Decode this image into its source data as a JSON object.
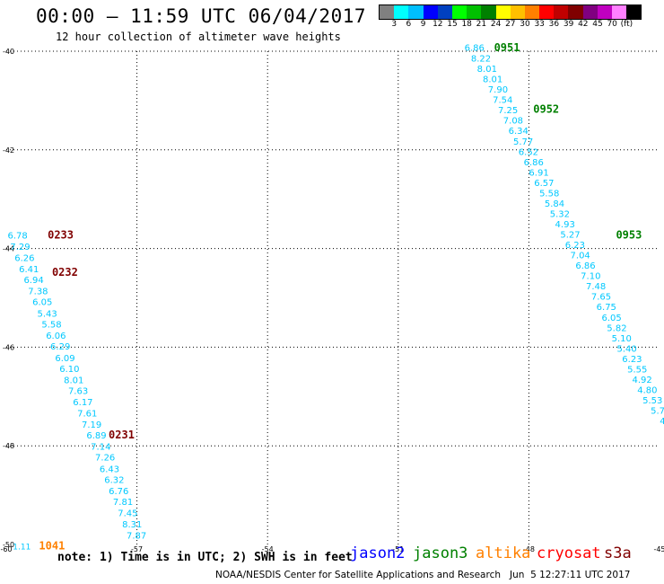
{
  "header": {
    "title": "00:00 – 11:59 UTC 06/04/2017",
    "subtitle": "12 hour collection of altimeter wave heights"
  },
  "color_scale": {
    "colors": [
      "#808080",
      "#00ffff",
      "#00bfff",
      "#0000ff",
      "#0040c0",
      "#00ff00",
      "#00c000",
      "#008000",
      "#ffff00",
      "#ffc000",
      "#ff8000",
      "#ff0000",
      "#c00000",
      "#800000",
      "#800080",
      "#c000c0",
      "#ff80ff",
      "#000000"
    ],
    "labels": [
      "3",
      "6",
      "9",
      "12",
      "15",
      "18",
      "21",
      "24",
      "27",
      "30",
      "33",
      "36",
      "39",
      "42",
      "45",
      "70",
      "(ft)"
    ]
  },
  "map": {
    "lat_labels": [
      "-40",
      "-42",
      "-44",
      "-46",
      "-48",
      "-50"
    ],
    "lon_labels": [
      "-60",
      "-57",
      "-54",
      "-51",
      "-48",
      "-45"
    ],
    "track_color": "#00c8ff",
    "tracks": [
      {
        "name": "track-east",
        "values": [
          "6.86",
          "8.22",
          "8.01",
          "8.01",
          "7.90",
          "7.54",
          "7.25",
          "7.08",
          "6.34",
          "5.77",
          "6.52",
          "6.86",
          "6.91",
          "6.57",
          "5.58",
          "5.84",
          "5.32",
          "4.93",
          "5.27",
          "6.23",
          "7.04",
          "6.86",
          "7.10",
          "7.48",
          "7.65",
          "6.75",
          "6.05",
          "5.82",
          "5.10",
          "5.40",
          "6.23",
          "5.55",
          "4.92",
          "4.80",
          "5.53",
          "5.7",
          "4"
        ],
        "lon": [
          -49.25,
          -49.1,
          -48.96,
          -48.83,
          -48.71,
          -48.6,
          -48.48,
          -48.36,
          -48.24,
          -48.13,
          -48.01,
          -47.89,
          -47.77,
          -47.65,
          -47.53,
          -47.41,
          -47.29,
          -47.17,
          -47.05,
          -46.94,
          -46.82,
          -46.7,
          -46.58,
          -46.46,
          -46.34,
          -46.22,
          -46.1,
          -45.98,
          -45.87,
          -45.75,
          -45.63,
          -45.51,
          -45.4,
          -45.28,
          -45.16,
          -45.04,
          -44.93
        ],
        "lat": [
          -39.99,
          -40.21,
          -40.42,
          -40.63,
          -40.84,
          -41.05,
          -41.26,
          -41.47,
          -41.68,
          -41.89,
          -42.1,
          -42.31,
          -42.52,
          -42.73,
          -42.94,
          -43.15,
          -43.36,
          -43.57,
          -43.78,
          -43.99,
          -44.2,
          -44.41,
          -44.62,
          -44.83,
          -45.04,
          -45.25,
          -45.46,
          -45.67,
          -45.88,
          -46.09,
          -46.3,
          -46.51,
          -46.72,
          -46.93,
          -47.14,
          -47.35,
          -47.56
        ]
      },
      {
        "name": "track-west",
        "values": [
          "6.78",
          "7.29",
          "6.26",
          "6.41",
          "6.94",
          "7.38",
          "6.05",
          "5.43",
          "5.58",
          "6.06",
          "6.29",
          "6.09",
          "6.10",
          "8.01",
          "7.63",
          "6.17",
          "7.61",
          "7.19",
          "6.89",
          "7.14",
          "7.26",
          "6.43",
          "6.32",
          "6.76",
          "7.81",
          "7.45",
          "8.31",
          "7.87"
        ],
        "lon": [
          -59.74,
          -59.68,
          -59.58,
          -59.48,
          -59.37,
          -59.27,
          -59.17,
          -59.06,
          -58.96,
          -58.86,
          -58.76,
          -58.65,
          -58.55,
          -58.45,
          -58.35,
          -58.24,
          -58.14,
          -58.04,
          -57.93,
          -57.83,
          -57.73,
          -57.63,
          -57.52,
          -57.42,
          -57.32,
          -57.21,
          -57.11,
          -57.01
        ],
        "lat": [
          -43.8,
          -44.03,
          -44.25,
          -44.48,
          -44.7,
          -44.93,
          -45.15,
          -45.38,
          -45.6,
          -45.83,
          -46.05,
          -46.28,
          -46.5,
          -46.73,
          -46.95,
          -47.18,
          -47.4,
          -47.63,
          -47.85,
          -48.08,
          -48.3,
          -48.53,
          -48.75,
          -48.98,
          -49.2,
          -49.43,
          -49.65,
          -49.88
        ]
      }
    ],
    "time_labels": [
      {
        "text": "0951",
        "color": "#008000",
        "lon": -48.8,
        "lat": -40.0
      },
      {
        "text": "0952",
        "color": "#008000",
        "lon": -47.9,
        "lat": -41.25
      },
      {
        "text": "0953",
        "color": "#008000",
        "lon": -46.0,
        "lat": -43.8
      },
      {
        "text": "0233",
        "color": "#800000",
        "lon": -59.05,
        "lat": -43.8
      },
      {
        "text": "0232",
        "color": "#800000",
        "lon": -58.95,
        "lat": -44.55
      },
      {
        "text": "0231",
        "color": "#800000",
        "lon": -57.65,
        "lat": -47.85
      },
      {
        "text": "1041",
        "color": "#ff8000",
        "lon": -59.25,
        "lat": -50.1
      }
    ],
    "corner_value": {
      "text": "1.11",
      "color": "#00c8ff",
      "lon": -59.85,
      "lat": -50.1
    }
  },
  "footer": {
    "note": "note: 1) Time is in UTC; 2) SWH is in feet",
    "legend": [
      {
        "label": "jason2",
        "color": "#0000ff"
      },
      {
        "label": "jason3",
        "color": "#008000"
      },
      {
        "label": "altika",
        "color": "#ff8000"
      },
      {
        "label": "cryosat",
        "color": "#ff0000"
      },
      {
        "label": "s3a",
        "color": "#800000"
      }
    ],
    "credit": "NOAA/NESDIS Center for Satellite Applications and Research   Jun  5 12:27:11 UTC 2017"
  }
}
